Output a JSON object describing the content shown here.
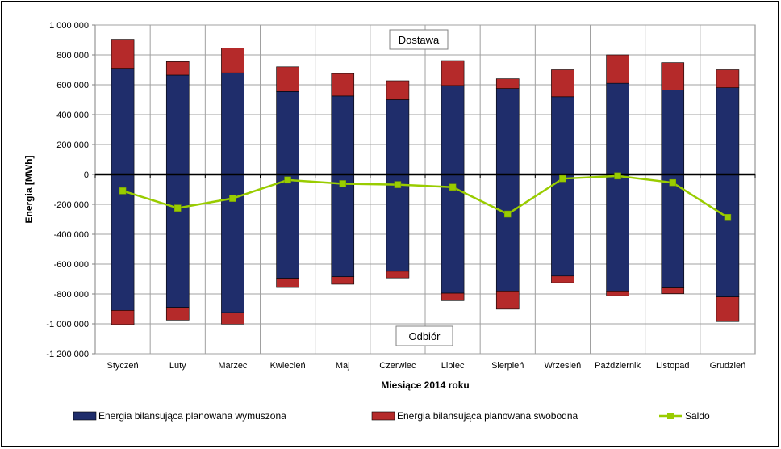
{
  "chart_data": {
    "type": "bar",
    "stacked": true,
    "categories": [
      "Styczeń",
      "Luty",
      "Marzec",
      "Kwiecień",
      "Maj",
      "Czerwiec",
      "Lipiec",
      "Sierpień",
      "Wrzesień",
      "Październik",
      "Listopad",
      "Grudzień"
    ],
    "xlabel": "Miesiące 2014 roku",
    "ylabel": "Energia [MWh]",
    "ylim": [
      -1200000,
      1000000
    ],
    "yticks": [
      1000000,
      800000,
      600000,
      400000,
      200000,
      0,
      -200000,
      -400000,
      -600000,
      -800000,
      -1000000,
      -1200000
    ],
    "ytick_labels": [
      "1 000 000",
      "800 000",
      "600 000",
      "400 000",
      "200 000",
      "0",
      "-200 000",
      "-400 000",
      "-600 000",
      "-800 000",
      "-1 000 000",
      "-1 200 000"
    ],
    "grid": true,
    "legend_position": "bottom",
    "annotations": {
      "top": "Dostawa",
      "bottom": "Odbiór"
    },
    "series": [
      {
        "name": "Energia bilansująca planowana wymuszona",
        "color": "#1f2d6b",
        "positive": [
          710000,
          665000,
          680000,
          555000,
          525000,
          500000,
          595000,
          575000,
          520000,
          610000,
          565000,
          580000
        ],
        "negative": [
          -910000,
          -890000,
          -925000,
          -695000,
          -685000,
          -648000,
          -795000,
          -780000,
          -680000,
          -780000,
          -760000,
          -820000
        ]
      },
      {
        "name": "Energia bilansująca planowana swobodna",
        "color": "#b52a2a",
        "positive": [
          195000,
          90000,
          165000,
          165000,
          150000,
          127000,
          167000,
          65000,
          180000,
          190000,
          183000,
          120000
        ],
        "negative": [
          -95000,
          -85000,
          -77000,
          -62000,
          -50000,
          -45000,
          -50000,
          -122000,
          -45000,
          -32000,
          -38000,
          -165000
        ]
      }
    ],
    "saldo": {
      "name": "Saldo",
      "color": "#99cc00",
      "values": [
        -110000,
        -225000,
        -160000,
        -37000,
        -62000,
        -68000,
        -85000,
        -265000,
        -28000,
        -10000,
        -55000,
        -288000
      ]
    }
  }
}
